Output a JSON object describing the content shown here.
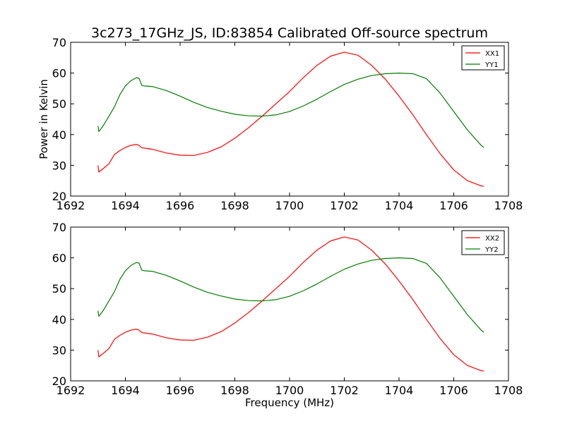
{
  "figure": {
    "title": "3c273_17GHz_JS, ID:83854 Calibrated Off-source spectrum",
    "ylabel": "Power in Kelvin",
    "xlabel": "Frequency (MHz)",
    "colors": {
      "xx": "#ff0000",
      "yy": "#007f00"
    }
  },
  "chart_data": [
    {
      "type": "line",
      "title": "3c273_17GHz_JS, ID:83854 Calibrated Off-source spectrum",
      "xlabel": "",
      "ylabel": "Power in Kelvin",
      "xlim": [
        1692,
        1708
      ],
      "ylim": [
        20,
        70
      ],
      "xticks": [
        1692,
        1694,
        1696,
        1698,
        1700,
        1702,
        1704,
        1706,
        1708
      ],
      "yticks": [
        20,
        30,
        40,
        50,
        60,
        70
      ],
      "legend": "top-right",
      "grid": false,
      "series": [
        {
          "name": "XX1",
          "color": "#ff0000",
          "x": [
            1693.0,
            1693.03,
            1693.06,
            1693.2,
            1693.4,
            1693.6,
            1693.8,
            1694.0,
            1694.2,
            1694.4,
            1694.5,
            1694.6,
            1694.7,
            1695.0,
            1695.5,
            1696.0,
            1696.5,
            1697.0,
            1697.5,
            1698.0,
            1698.5,
            1699.0,
            1699.5,
            1700.0,
            1700.5,
            1701.0,
            1701.5,
            1702.0,
            1702.5,
            1703.0,
            1703.5,
            1704.0,
            1704.5,
            1705.0,
            1705.5,
            1706.0,
            1706.5,
            1707.0,
            1707.1
          ],
          "y": [
            30.0,
            27.8,
            28.0,
            29.0,
            30.5,
            33.5,
            34.8,
            35.8,
            36.5,
            36.8,
            36.5,
            35.7,
            35.6,
            35.2,
            34.0,
            33.3,
            33.2,
            34.2,
            36.0,
            38.8,
            42.2,
            46.0,
            50.0,
            54.0,
            58.5,
            62.5,
            65.5,
            66.8,
            65.8,
            62.5,
            58.0,
            52.5,
            46.5,
            40.0,
            33.8,
            28.5,
            25.0,
            23.3,
            23.2
          ]
        },
        {
          "name": "YY1",
          "color": "#007f00",
          "x": [
            1693.0,
            1693.03,
            1693.06,
            1693.2,
            1693.4,
            1693.6,
            1693.8,
            1694.0,
            1694.2,
            1694.4,
            1694.5,
            1694.6,
            1694.7,
            1695.0,
            1695.5,
            1696.0,
            1696.5,
            1697.0,
            1697.5,
            1698.0,
            1698.5,
            1699.0,
            1699.5,
            1700.0,
            1700.5,
            1701.0,
            1701.5,
            1702.0,
            1702.5,
            1703.0,
            1703.5,
            1704.0,
            1704.5,
            1705.0,
            1705.5,
            1706.0,
            1706.5,
            1707.0,
            1707.1
          ],
          "y": [
            42.8,
            41.0,
            41.3,
            43.0,
            46.0,
            49.0,
            53.0,
            55.8,
            57.5,
            58.5,
            58.3,
            56.0,
            55.8,
            55.6,
            54.3,
            52.5,
            50.5,
            48.8,
            47.6,
            46.6,
            46.1,
            46.0,
            46.4,
            47.5,
            49.3,
            51.5,
            54.0,
            56.3,
            58.0,
            59.2,
            59.8,
            60.0,
            59.8,
            58.2,
            53.5,
            47.5,
            41.5,
            36.5,
            35.8
          ]
        }
      ]
    },
    {
      "type": "line",
      "title": "",
      "xlabel": "Frequency (MHz)",
      "ylabel": "",
      "xlim": [
        1692,
        1708
      ],
      "ylim": [
        20,
        70
      ],
      "xticks": [
        1692,
        1694,
        1696,
        1698,
        1700,
        1702,
        1704,
        1706,
        1708
      ],
      "yticks": [
        20,
        30,
        40,
        50,
        60,
        70
      ],
      "legend": "top-right",
      "grid": false,
      "series": [
        {
          "name": "XX2",
          "color": "#ff0000",
          "x": [
            1693.0,
            1693.03,
            1693.06,
            1693.2,
            1693.4,
            1693.6,
            1693.8,
            1694.0,
            1694.2,
            1694.4,
            1694.5,
            1694.6,
            1694.7,
            1695.0,
            1695.5,
            1696.0,
            1696.5,
            1697.0,
            1697.5,
            1698.0,
            1698.5,
            1699.0,
            1699.5,
            1700.0,
            1700.5,
            1701.0,
            1701.5,
            1702.0,
            1702.5,
            1703.0,
            1703.5,
            1704.0,
            1704.5,
            1705.0,
            1705.5,
            1706.0,
            1706.5,
            1707.0,
            1707.1
          ],
          "y": [
            30.0,
            27.8,
            28.0,
            29.0,
            30.5,
            33.5,
            34.8,
            35.8,
            36.5,
            36.8,
            36.5,
            35.7,
            35.6,
            35.2,
            34.0,
            33.3,
            33.2,
            34.2,
            36.0,
            38.8,
            42.2,
            46.0,
            50.0,
            54.0,
            58.5,
            62.5,
            65.5,
            66.8,
            65.8,
            62.5,
            58.0,
            52.5,
            46.5,
            40.0,
            33.8,
            28.5,
            25.0,
            23.3,
            23.2
          ]
        },
        {
          "name": "YY2",
          "color": "#007f00",
          "x": [
            1693.0,
            1693.03,
            1693.06,
            1693.2,
            1693.4,
            1693.6,
            1693.8,
            1694.0,
            1694.2,
            1694.4,
            1694.5,
            1694.6,
            1694.7,
            1695.0,
            1695.5,
            1696.0,
            1696.5,
            1697.0,
            1697.5,
            1698.0,
            1698.5,
            1699.0,
            1699.5,
            1700.0,
            1700.5,
            1701.0,
            1701.5,
            1702.0,
            1702.5,
            1703.0,
            1703.5,
            1704.0,
            1704.5,
            1705.0,
            1705.5,
            1706.0,
            1706.5,
            1707.0,
            1707.1
          ],
          "y": [
            42.8,
            41.0,
            41.3,
            43.0,
            46.0,
            49.0,
            53.0,
            55.8,
            57.5,
            58.5,
            58.3,
            56.0,
            55.8,
            55.6,
            54.3,
            52.5,
            50.5,
            48.8,
            47.6,
            46.6,
            46.1,
            46.0,
            46.4,
            47.5,
            49.3,
            51.5,
            54.0,
            56.3,
            58.0,
            59.2,
            59.8,
            60.0,
            59.8,
            58.2,
            53.5,
            47.5,
            41.5,
            36.5,
            35.8
          ]
        }
      ]
    }
  ]
}
